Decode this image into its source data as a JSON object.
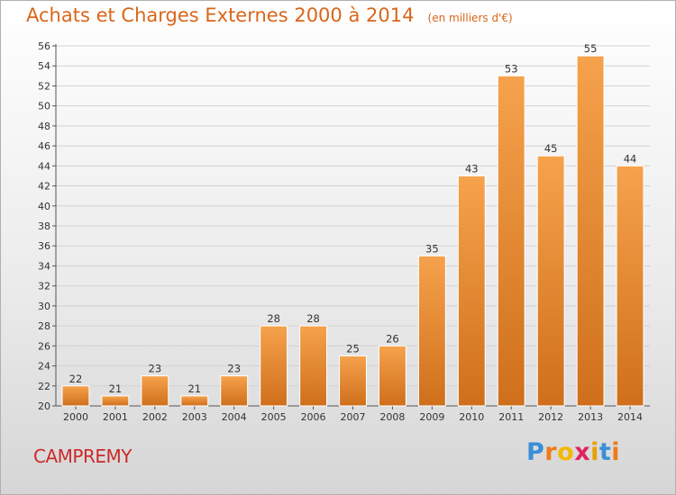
{
  "header": {
    "title": "Achats et Charges Externes 2000 à 2014",
    "unit": "(en milliers d'€)"
  },
  "commune": "CAMPREMY",
  "logo": {
    "letters": [
      "P",
      "r",
      "o",
      "x",
      "i",
      "t",
      "i"
    ],
    "colors": [
      "#3a8fd6",
      "#f07a1a",
      "#f5b800",
      "#e0245e",
      "#e8a000",
      "#3a8fd6",
      "#f07a1a"
    ]
  },
  "colors": {
    "bar_light": "#f6a24c",
    "bar_dark": "#cf6f1b",
    "axis": "#555555",
    "grid": "#d2d2d2"
  },
  "chart_data": {
    "type": "bar",
    "title": "Achats et Charges Externes 2000 à 2014",
    "subtitle": "(en milliers d'€)",
    "categories": [
      "2000",
      "2001",
      "2002",
      "2003",
      "2004",
      "2005",
      "2006",
      "2007",
      "2008",
      "2009",
      "2010",
      "2011",
      "2012",
      "2013",
      "2014"
    ],
    "values": [
      22,
      21,
      23,
      21,
      23,
      28,
      28,
      25,
      26,
      35,
      43,
      53,
      45,
      55,
      44
    ],
    "ylim": [
      20,
      56
    ],
    "ytick_step": 2,
    "grid": true,
    "xlabel": "",
    "ylabel": ""
  }
}
